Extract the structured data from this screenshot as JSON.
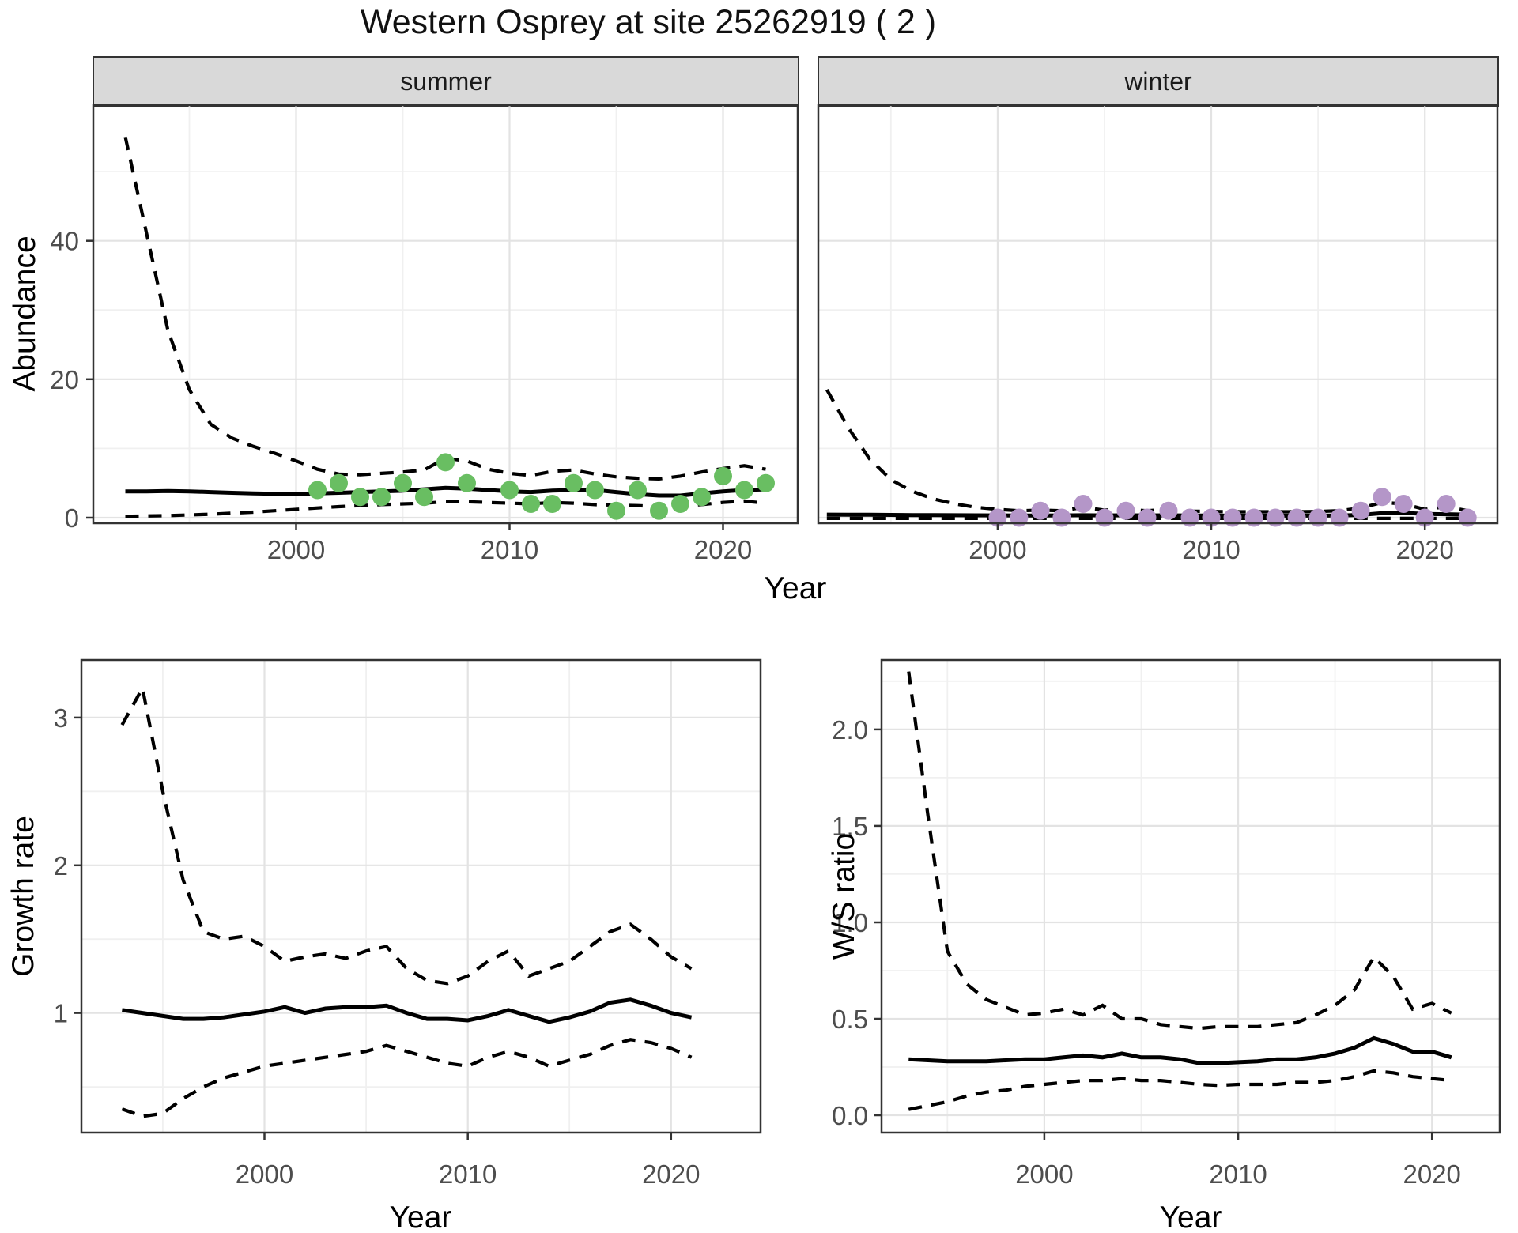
{
  "title": "Western Osprey at site 25262919 ( 2 )",
  "top_row": {
    "xlabel": "Year",
    "ylabel": "Abundance"
  },
  "colors": {
    "summer_points": "#69be62",
    "winter_points": "#b496c8",
    "line": "#000000",
    "strip_bg": "#d9d9d9",
    "grid_major": "#e3e3e3",
    "grid_minor": "#f0f0f0",
    "border": "#333333",
    "tick_label": "#4d4d4d"
  },
  "chart_data": [
    {
      "id": "abundance-summer",
      "type": "line",
      "facet_label": "summer",
      "ylabel": "Abundance",
      "xlabel": "Year",
      "xlim": [
        1990.5,
        2023.5
      ],
      "ylim": [
        -0.8,
        59.6
      ],
      "xticks": {
        "values": [
          2000,
          2010,
          2020
        ],
        "labels": [
          "2000",
          "2010",
          "2020"
        ],
        "minor": [
          1995,
          2005,
          2015
        ]
      },
      "yticks": {
        "values": [
          0,
          20,
          40
        ],
        "labels": [
          "0",
          "20",
          "40"
        ],
        "minor": [
          10,
          30,
          50
        ]
      },
      "line_x": [
        1992,
        1993,
        1994,
        1995,
        1996,
        1997,
        1998,
        1999,
        2000,
        2001,
        2002,
        2003,
        2004,
        2005,
        2006,
        2007,
        2008,
        2009,
        2010,
        2011,
        2012,
        2013,
        2014,
        2015,
        2016,
        2017,
        2018,
        2019,
        2020,
        2021,
        2022
      ],
      "series": [
        {
          "name": "mean",
          "style": "solid",
          "values": [
            3.8,
            3.8,
            3.85,
            3.8,
            3.7,
            3.6,
            3.5,
            3.45,
            3.4,
            3.5,
            3.6,
            3.7,
            3.8,
            3.9,
            4.1,
            4.3,
            4.2,
            4.0,
            3.8,
            3.7,
            3.9,
            4.0,
            4.0,
            3.7,
            3.4,
            3.2,
            3.2,
            3.5,
            3.8,
            4.0,
            4.1
          ]
        },
        {
          "name": "upper_ci",
          "style": "dashed",
          "values": [
            55,
            41,
            27,
            18.5,
            13.5,
            11.5,
            10.3,
            9.3,
            8.2,
            7.0,
            6.3,
            6.2,
            6.4,
            6.6,
            6.9,
            8.6,
            8.2,
            7.0,
            6.4,
            6.1,
            6.7,
            6.9,
            6.3,
            5.9,
            5.7,
            5.6,
            6.0,
            6.6,
            7.1,
            7.5,
            7.0
          ]
        },
        {
          "name": "lower_ci",
          "style": "dashed",
          "values": [
            0.2,
            0.25,
            0.3,
            0.4,
            0.5,
            0.65,
            0.8,
            1.0,
            1.2,
            1.4,
            1.6,
            1.75,
            1.9,
            2.0,
            2.1,
            2.3,
            2.3,
            2.2,
            2.1,
            2.0,
            2.2,
            2.1,
            1.9,
            1.8,
            1.75,
            1.6,
            1.7,
            1.9,
            2.2,
            2.4,
            2.1
          ]
        }
      ],
      "points": {
        "color": "#69be62",
        "x": [
          2001,
          2002,
          2003,
          2004,
          2005,
          2006,
          2007,
          2008,
          2010,
          2011,
          2012,
          2013,
          2014,
          2015,
          2016,
          2017,
          2018,
          2019,
          2020,
          2021,
          2022
        ],
        "y": [
          4,
          5,
          3,
          3,
          5,
          3,
          8,
          5,
          4,
          2,
          2,
          5,
          4,
          1,
          4,
          1,
          2,
          3,
          6,
          4,
          5
        ]
      }
    },
    {
      "id": "abundance-winter",
      "type": "line",
      "facet_label": "winter",
      "ylabel": "Abundance",
      "xlabel": "Year",
      "xlim": [
        1991.6,
        2023.4
      ],
      "ylim": [
        -0.8,
        59.6
      ],
      "xticks": {
        "values": [
          2000,
          2010,
          2020
        ],
        "labels": [
          "2000",
          "2010",
          "2020"
        ],
        "minor": [
          1995,
          2005,
          2015
        ]
      },
      "yticks": {
        "values": [
          0,
          20,
          40
        ],
        "labels": [],
        "minor": [
          10,
          30,
          50
        ]
      },
      "line_x": [
        1992,
        1993,
        1994,
        1995,
        1996,
        1997,
        1998,
        1999,
        2000,
        2001,
        2002,
        2003,
        2004,
        2005,
        2006,
        2007,
        2008,
        2009,
        2010,
        2011,
        2012,
        2013,
        2014,
        2015,
        2016,
        2017,
        2018,
        2019,
        2020,
        2021,
        2022
      ],
      "series": [
        {
          "name": "mean",
          "style": "solid",
          "values": [
            0.45,
            0.43,
            0.42,
            0.4,
            0.38,
            0.36,
            0.35,
            0.34,
            0.33,
            0.32,
            0.32,
            0.33,
            0.35,
            0.33,
            0.34,
            0.33,
            0.34,
            0.32,
            0.31,
            0.3,
            0.3,
            0.3,
            0.3,
            0.3,
            0.32,
            0.4,
            0.65,
            0.7,
            0.55,
            0.5,
            0.45
          ]
        },
        {
          "name": "upper_ci",
          "style": "dashed",
          "values": [
            18.5,
            13,
            8.5,
            5.5,
            3.8,
            2.7,
            2.0,
            1.5,
            1.2,
            1.0,
            1.1,
            1.0,
            1.5,
            1.1,
            1.2,
            1.0,
            1.2,
            0.95,
            0.9,
            0.85,
            0.85,
            0.85,
            0.85,
            0.9,
            1.0,
            1.4,
            2.2,
            2.0,
            1.2,
            1.6,
            1.0
          ]
        },
        {
          "name": "lower_ci",
          "style": "dashed",
          "values": [
            -0.1,
            -0.1,
            -0.1,
            -0.1,
            -0.1,
            -0.1,
            -0.1,
            -0.1,
            -0.1,
            -0.1,
            -0.1,
            -0.1,
            -0.1,
            -0.1,
            -0.1,
            -0.1,
            -0.1,
            -0.1,
            -0.1,
            -0.1,
            -0.1,
            -0.1,
            -0.1,
            -0.1,
            -0.1,
            -0.1,
            -0.1,
            -0.1,
            -0.1,
            -0.1,
            -0.1
          ]
        }
      ],
      "points": {
        "color": "#b496c8",
        "x": [
          2000,
          2001,
          2002,
          2003,
          2004,
          2005,
          2006,
          2007,
          2008,
          2009,
          2010,
          2011,
          2012,
          2013,
          2014,
          2015,
          2016,
          2017,
          2018,
          2019,
          2020,
          2021,
          2022
        ],
        "y": [
          0,
          0,
          1,
          0,
          2,
          0,
          1,
          0,
          1,
          0,
          0,
          0,
          0,
          0,
          0,
          0,
          0,
          1,
          3,
          2,
          0,
          2,
          0
        ]
      }
    },
    {
      "id": "growth-rate",
      "type": "line",
      "facet_label": "",
      "ylabel": "Growth rate",
      "xlabel": "Year",
      "xlim": [
        1991.0,
        2024.4
      ],
      "ylim": [
        0.19,
        3.39
      ],
      "xticks": {
        "values": [
          2000,
          2010,
          2020
        ],
        "labels": [
          "2000",
          "2010",
          "2020"
        ],
        "minor": [
          1995,
          2005,
          2015
        ]
      },
      "yticks": {
        "values": [
          1,
          2,
          3
        ],
        "labels": [
          "1",
          "2",
          "3"
        ],
        "minor": [
          0.5,
          1.5,
          2.5
        ]
      },
      "line_x": [
        1993,
        1994,
        1995,
        1996,
        1997,
        1998,
        1999,
        2000,
        2001,
        2002,
        2003,
        2004,
        2005,
        2006,
        2007,
        2008,
        2009,
        2010,
        2011,
        2012,
        2013,
        2014,
        2015,
        2016,
        2017,
        2018,
        2019,
        2020,
        2021
      ],
      "series": [
        {
          "name": "mean",
          "style": "solid",
          "values": [
            1.02,
            1.0,
            0.98,
            0.96,
            0.96,
            0.97,
            0.99,
            1.01,
            1.04,
            1.0,
            1.03,
            1.04,
            1.04,
            1.05,
            1.0,
            0.96,
            0.96,
            0.95,
            0.98,
            1.02,
            0.98,
            0.94,
            0.97,
            1.01,
            1.07,
            1.09,
            1.05,
            1.0,
            0.97
          ]
        },
        {
          "name": "upper_ci",
          "style": "dashed",
          "values": [
            2.95,
            3.2,
            2.5,
            1.9,
            1.55,
            1.5,
            1.52,
            1.45,
            1.35,
            1.38,
            1.4,
            1.37,
            1.42,
            1.45,
            1.3,
            1.22,
            1.2,
            1.25,
            1.35,
            1.42,
            1.25,
            1.3,
            1.35,
            1.45,
            1.55,
            1.6,
            1.5,
            1.38,
            1.3
          ]
        },
        {
          "name": "lower_ci",
          "style": "dashed",
          "values": [
            0.35,
            0.3,
            0.32,
            0.42,
            0.5,
            0.56,
            0.6,
            0.64,
            0.66,
            0.68,
            0.7,
            0.72,
            0.74,
            0.78,
            0.74,
            0.7,
            0.66,
            0.64,
            0.7,
            0.74,
            0.7,
            0.64,
            0.68,
            0.72,
            0.78,
            0.82,
            0.8,
            0.76,
            0.7
          ]
        }
      ],
      "points": null
    },
    {
      "id": "ws-ratio",
      "type": "line",
      "facet_label": "",
      "ylabel": "W/S ratio",
      "xlabel": "Year",
      "xlim": [
        1991.6,
        2023.5
      ],
      "ylim": [
        -0.09,
        2.36
      ],
      "xticks": {
        "values": [
          2000,
          2010,
          2020
        ],
        "labels": [
          "2000",
          "2010",
          "2020"
        ],
        "minor": [
          1995,
          2005,
          2015
        ]
      },
      "yticks": {
        "values": [
          0,
          0.5,
          1,
          1.5,
          2
        ],
        "labels": [
          "0.0",
          "0.5",
          "1.0",
          "1.5",
          "2.0"
        ],
        "minor": [
          0.25,
          0.75,
          1.25,
          1.75,
          2.25
        ]
      },
      "line_x": [
        1993,
        1994,
        1995,
        1996,
        1997,
        1998,
        1999,
        2000,
        2001,
        2002,
        2003,
        2004,
        2005,
        2006,
        2007,
        2008,
        2009,
        2010,
        2011,
        2012,
        2013,
        2014,
        2015,
        2016,
        2017,
        2018,
        2019,
        2020,
        2021
      ],
      "series": [
        {
          "name": "mean",
          "style": "solid",
          "values": [
            0.29,
            0.285,
            0.28,
            0.28,
            0.28,
            0.285,
            0.29,
            0.29,
            0.3,
            0.31,
            0.3,
            0.32,
            0.3,
            0.3,
            0.29,
            0.27,
            0.27,
            0.275,
            0.28,
            0.29,
            0.29,
            0.3,
            0.32,
            0.35,
            0.4,
            0.37,
            0.33,
            0.33,
            0.3
          ]
        },
        {
          "name": "upper_ci",
          "style": "dashed",
          "values": [
            2.3,
            1.55,
            0.85,
            0.68,
            0.6,
            0.56,
            0.52,
            0.53,
            0.55,
            0.52,
            0.57,
            0.5,
            0.5,
            0.47,
            0.46,
            0.45,
            0.46,
            0.46,
            0.46,
            0.47,
            0.48,
            0.52,
            0.57,
            0.65,
            0.82,
            0.72,
            0.55,
            0.58,
            0.53
          ]
        },
        {
          "name": "lower_ci",
          "style": "dashed",
          "values": [
            0.03,
            0.05,
            0.07,
            0.1,
            0.12,
            0.13,
            0.15,
            0.16,
            0.17,
            0.18,
            0.18,
            0.19,
            0.18,
            0.18,
            0.17,
            0.16,
            0.155,
            0.16,
            0.16,
            0.16,
            0.17,
            0.17,
            0.18,
            0.2,
            0.23,
            0.22,
            0.2,
            0.19,
            0.18
          ]
        }
      ],
      "points": null
    }
  ]
}
